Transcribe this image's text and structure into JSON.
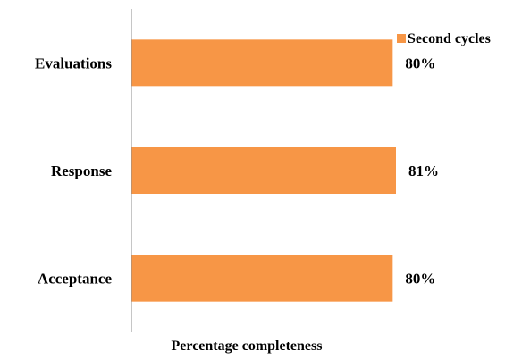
{
  "chart_data": {
    "type": "bar",
    "orientation": "horizontal",
    "categories": [
      "Acceptance",
      "Response",
      "Evaluations"
    ],
    "series": [
      {
        "name": "Second cycles",
        "values": [
          80,
          81,
          80
        ],
        "labels": [
          "80%",
          "81%",
          "80%"
        ],
        "color": "#F79646"
      }
    ],
    "xlabel": "Percentage completeness",
    "ylabel": "",
    "xlim": [
      0,
      162
    ],
    "grid": false,
    "legend": "top-right",
    "axis_color": "#8c8c8c"
  }
}
